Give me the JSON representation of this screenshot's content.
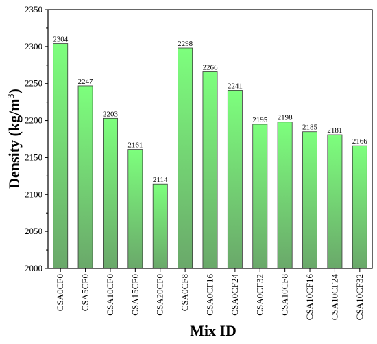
{
  "chart_data": {
    "type": "bar",
    "title": "",
    "xlabel": "Mix ID",
    "ylabel_main": "Density (kg/m",
    "ylabel_sup": "3",
    "ylabel_close": ")",
    "ylim": [
      2000,
      2350
    ],
    "yticks": [
      2000,
      2050,
      2100,
      2150,
      2200,
      2250,
      2300,
      2350
    ],
    "grid": false,
    "legend": "none",
    "categories": [
      "CSA0CF0",
      "CSA5CF0",
      "CSA10CF0",
      "CSA15CF0",
      "CSA20CF0",
      "CSA0CF8",
      "CSA0CF16",
      "CSA0CF24",
      "CSA0CF32",
      "CSA10CF8",
      "CSA10CF16",
      "CSA10CF24",
      "CSA10CF32"
    ],
    "values": [
      2304,
      2247,
      2203,
      2161,
      2114,
      2298,
      2266,
      2241,
      2195,
      2198,
      2185,
      2181,
      2166
    ],
    "bar_color_top": "#7dff7d",
    "bar_color_bottom": "#6aa86a",
    "bar_stroke": "#3a3a3a"
  }
}
